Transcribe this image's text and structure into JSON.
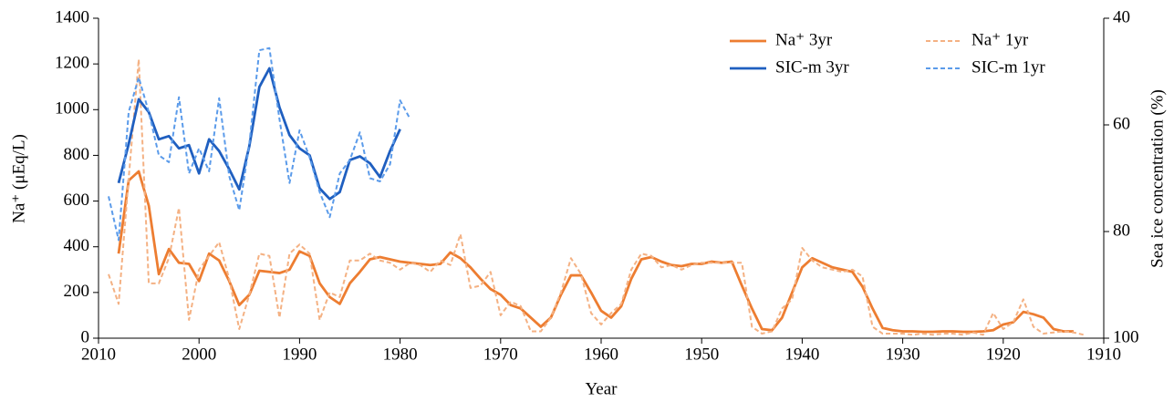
{
  "chart_data": {
    "type": "line",
    "x_label": "Year",
    "y_label": "Na⁺ (μEq/L)",
    "y2_label": "Sea ice concentration (%)",
    "xlim": [
      2010,
      1910
    ],
    "xticks": [
      2010,
      2000,
      1990,
      1980,
      1970,
      1960,
      1950,
      1940,
      1930,
      1920,
      1910
    ],
    "ylim": [
      0,
      1400
    ],
    "yticks": [
      0,
      200,
      400,
      600,
      800,
      1000,
      1200,
      1400
    ],
    "y2lim": [
      100,
      40
    ],
    "y2ticks": [
      40,
      60,
      80,
      100
    ],
    "grid": false,
    "legend": "upper right",
    "series": [
      {
        "name": "Na⁺ 3yr",
        "color": "#ed7d31",
        "dashed": false,
        "x": [
          2008,
          2007,
          2006,
          2005,
          2004,
          2003,
          2002,
          2001,
          2000,
          1999,
          1998,
          1997,
          1996,
          1995,
          1994,
          1993,
          1992,
          1991,
          1990,
          1989,
          1988,
          1987,
          1986,
          1985,
          1984,
          1983,
          1982,
          1981,
          1980,
          1979,
          1978,
          1977,
          1976,
          1975,
          1974,
          1973,
          1972,
          1971,
          1970,
          1969,
          1968,
          1967,
          1966,
          1965,
          1964,
          1963,
          1962,
          1961,
          1960,
          1959,
          1958,
          1957,
          1956,
          1955,
          1954,
          1953,
          1952,
          1951,
          1950,
          1949,
          1948,
          1947,
          1946,
          1945,
          1944,
          1943,
          1942,
          1941,
          1940,
          1939,
          1938,
          1937,
          1936,
          1935,
          1934,
          1933,
          1932,
          1931,
          1930,
          1929,
          1928,
          1927,
          1926,
          1925,
          1924,
          1923,
          1922,
          1921,
          1920,
          1919,
          1918,
          1917,
          1916,
          1915,
          1914,
          1913
        ],
        "values": [
          370,
          690,
          730,
          580,
          280,
          390,
          330,
          325,
          250,
          370,
          340,
          250,
          145,
          190,
          295,
          290,
          285,
          300,
          380,
          360,
          240,
          180,
          150,
          240,
          290,
          345,
          355,
          345,
          335,
          330,
          325,
          320,
          325,
          375,
          350,
          310,
          260,
          215,
          190,
          145,
          130,
          90,
          50,
          90,
          190,
          275,
          275,
          200,
          120,
          90,
          140,
          260,
          345,
          355,
          335,
          320,
          315,
          325,
          325,
          335,
          330,
          335,
          230,
          130,
          40,
          35,
          90,
          200,
          310,
          350,
          330,
          310,
          300,
          290,
          225,
          130,
          45,
          35,
          30,
          30,
          28,
          28,
          30,
          30,
          28,
          28,
          30,
          35,
          60,
          70,
          115,
          105,
          90,
          40,
          30,
          30
        ]
      },
      {
        "name": "Na⁺ 1yr",
        "color": "#f4b183",
        "dashed": true,
        "x": [
          2009,
          2008,
          2007,
          2006,
          2005,
          2004,
          2003,
          2002,
          2001,
          2000,
          1999,
          1998,
          1997,
          1996,
          1995,
          1994,
          1993,
          1992,
          1991,
          1990,
          1989,
          1988,
          1987,
          1986,
          1985,
          1984,
          1983,
          1982,
          1981,
          1980,
          1979,
          1978,
          1977,
          1976,
          1975,
          1974,
          1973,
          1972,
          1971,
          1970,
          1969,
          1968,
          1967,
          1966,
          1965,
          1964,
          1963,
          1962,
          1961,
          1960,
          1959,
          1958,
          1957,
          1956,
          1955,
          1954,
          1953,
          1952,
          1951,
          1950,
          1949,
          1948,
          1947,
          1946,
          1945,
          1944,
          1943,
          1942,
          1941,
          1940,
          1939,
          1938,
          1937,
          1936,
          1935,
          1934,
          1933,
          1932,
          1931,
          1930,
          1929,
          1928,
          1927,
          1926,
          1925,
          1924,
          1923,
          1922,
          1921,
          1920,
          1919,
          1918,
          1917,
          1916,
          1915,
          1914,
          1913,
          1912
        ],
        "values": [
          280,
          150,
          700,
          1220,
          240,
          240,
          350,
          570,
          80,
          300,
          360,
          420,
          260,
          40,
          190,
          370,
          360,
          90,
          370,
          410,
          370,
          80,
          200,
          180,
          340,
          340,
          370,
          340,
          330,
          300,
          330,
          320,
          290,
          340,
          320,
          455,
          220,
          230,
          290,
          100,
          160,
          140,
          30,
          30,
          90,
          200,
          350,
          280,
          110,
          60,
          110,
          150,
          300,
          370,
          360,
          310,
          320,
          300,
          320,
          330,
          330,
          330,
          330,
          330,
          50,
          20,
          30,
          130,
          170,
          395,
          340,
          310,
          300,
          290,
          300,
          270,
          50,
          20,
          20,
          20,
          15,
          20,
          15,
          20,
          20,
          15,
          25,
          15,
          110,
          40,
          70,
          170,
          50,
          20,
          25,
          30,
          25,
          15
        ]
      },
      {
        "name": "SIC-m 3yr",
        "color": "#1f5fc0",
        "dashed": false,
        "axis": "y2",
        "x": [
          2008,
          2007,
          2006,
          2005,
          2004,
          2003,
          2002,
          2001,
          2000,
          1999,
          1998,
          1997,
          1996,
          1995,
          1994,
          1993,
          1992,
          1991,
          1990,
          1989,
          1988,
          1987,
          1986,
          1985,
          1984,
          1983,
          1982,
          1981,
          1980
        ],
        "values": [
          70.9,
          63.6,
          55.2,
          57.6,
          62.7,
          62.1,
          64.4,
          63.8,
          69.1,
          62.7,
          64.9,
          68.3,
          72.1,
          64.0,
          52.9,
          49.4,
          56.7,
          61.9,
          64.4,
          65.7,
          71.9,
          73.9,
          72.6,
          66.6,
          65.9,
          67.2,
          69.8,
          64.9,
          60.8
        ]
      },
      {
        "name": "SIC-m 1yr",
        "color": "#5b9bea",
        "dashed": true,
        "axis": "y2",
        "x": [
          2009,
          2008,
          2007,
          2006,
          2005,
          2004,
          2003,
          2002,
          2001,
          2000,
          1999,
          1998,
          1997,
          1996,
          1995,
          1994,
          1993,
          1992,
          1991,
          1990,
          1989,
          1988,
          1987,
          1986,
          1985,
          1984,
          1983,
          1982,
          1981,
          1980,
          1979
        ],
        "values": [
          73.4,
          81.6,
          57.6,
          51.1,
          57.6,
          65.7,
          67.0,
          54.8,
          69.1,
          64.4,
          68.7,
          55.0,
          69.6,
          76.0,
          63.6,
          46.0,
          45.6,
          58.9,
          70.9,
          61.0,
          66.1,
          72.6,
          77.3,
          69.1,
          66.6,
          61.4,
          70.0,
          70.6,
          67.4,
          55.4,
          58.9
        ]
      }
    ]
  }
}
